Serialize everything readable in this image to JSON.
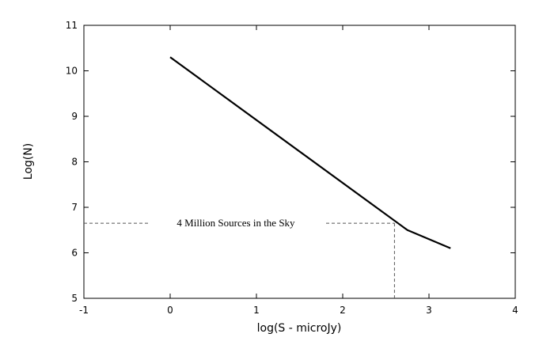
{
  "chart_data": {
    "type": "line",
    "title": "",
    "xlabel": "log(S - microJy)",
    "ylabel": "Log(N)",
    "xlim": [
      -1,
      4
    ],
    "ylim": [
      5,
      11
    ],
    "xticks": [
      -1,
      0,
      1,
      2,
      3,
      4
    ],
    "xtick_labels": [
      "-1",
      "0",
      "1",
      "2",
      "3",
      "4"
    ],
    "yticks": [
      5,
      6,
      7,
      8,
      9,
      10,
      11
    ],
    "ytick_labels": [
      "5",
      "6",
      "7",
      "8",
      "9",
      "10",
      "11"
    ],
    "grid": false,
    "series": [
      {
        "x": [
          0,
          2.75,
          3.25
        ],
        "y": [
          10.3,
          6.5,
          6.1
        ]
      }
    ],
    "annotations": [
      {
        "text": "4 Million Sources in the Sky",
        "x": 2.6,
        "y": 6.65
      }
    ]
  },
  "colors": {
    "axis": "#000000",
    "line": "#000000",
    "guide": "#555555"
  }
}
